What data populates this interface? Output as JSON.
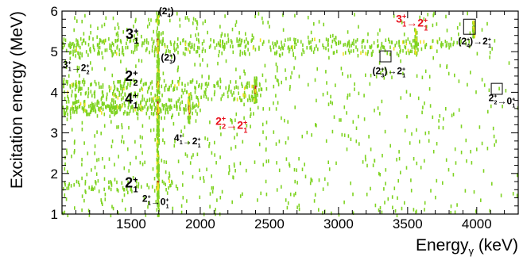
{
  "chart_data": {
    "type": "heatmap",
    "xlabel": "Energy",
    "xlabel_sub": "γ",
    "xlabel_unit": " (keV)",
    "ylabel": "Excitation energy (MeV)",
    "xlim": [
      1000,
      4300
    ],
    "ylim": [
      1,
      6
    ],
    "xticks": [
      1500,
      2000,
      2500,
      3000,
      3500,
      4000
    ],
    "yticks": [
      1,
      2,
      3,
      4,
      5,
      6
    ],
    "colors": {
      "low": "#7ed321",
      "mid": "#f0e020",
      "high": "#c0281c",
      "label_red": "#e8101c"
    },
    "bands": [
      {
        "y": 5.25,
        "x0": 1000,
        "x1": 3950,
        "density": 0.55
      },
      {
        "y": 5.05,
        "x0": 1000,
        "x1": 3600,
        "density": 0.35
      },
      {
        "y": 4.2,
        "x0": 1000,
        "x1": 2450,
        "density": 0.6
      },
      {
        "y": 3.95,
        "x0": 1000,
        "x1": 2450,
        "density": 0.45
      },
      {
        "y": 3.72,
        "x0": 1000,
        "x1": 2000,
        "density": 0.75
      },
      {
        "y": 3.6,
        "x0": 1000,
        "x1": 2000,
        "density": 0.7
      },
      {
        "y": 1.75,
        "x0": 1000,
        "x1": 1800,
        "density": 0.35
      }
    ],
    "vertical_lines": [
      {
        "x": 1690,
        "y0": 1.0,
        "y1": 6.0,
        "hot": [
          1.75,
          3.6,
          3.72,
          4.2,
          5.05,
          5.25
        ]
      },
      {
        "x": 1915,
        "y0": 3.3,
        "y1": 4.0,
        "hot": [
          3.6,
          3.72
        ]
      },
      {
        "x": 2395,
        "y0": 3.8,
        "y1": 4.4,
        "hot": [
          4.1
        ]
      },
      {
        "x": 3555,
        "y0": 5.0,
        "y1": 5.6,
        "hot": []
      },
      {
        "x": 3975,
        "y0": 5.4,
        "y1": 5.8,
        "hot": []
      }
    ],
    "boxes": [
      {
        "x0": 3300,
        "x1": 3380,
        "y0": 4.75,
        "y1": 5.02
      },
      {
        "x0": 3905,
        "x1": 3990,
        "y0": 5.43,
        "y1": 5.8
      },
      {
        "x0": 4105,
        "x1": 4185,
        "y0": 3.95,
        "y1": 4.22
      }
    ],
    "annotations": [
      {
        "id": "ann-3-1",
        "x": 1460,
        "y": 5.32,
        "base": "3",
        "sub": "1",
        "sup": "+",
        "size": 18,
        "red": false
      },
      {
        "id": "ann-2-2",
        "x": 1455,
        "y": 4.28,
        "base": "2",
        "sub": "2",
        "sup": "+",
        "size": 18,
        "red": false
      },
      {
        "id": "ann-4-1",
        "x": 1455,
        "y": 3.72,
        "base": "4",
        "sub": "1",
        "sup": "+",
        "size": 18,
        "red": false
      },
      {
        "id": "ann-2-1",
        "x": 1455,
        "y": 1.65,
        "base": "2",
        "sub": "1",
        "sup": "+",
        "size": 18,
        "red": false
      },
      {
        "id": "ann-2-4-paren",
        "x": 1700,
        "y": 5.92,
        "base": "(2",
        "sub": "4",
        "sup": "+",
        "tail": ")",
        "size": 12,
        "red": false
      },
      {
        "id": "ann-2-3-paren",
        "x": 1715,
        "y": 4.78,
        "base": "(2",
        "sub": "3",
        "sup": "+",
        "tail": ")",
        "size": 12,
        "red": false
      },
      {
        "id": "ann-31-22",
        "x": 1005,
        "y": 4.6,
        "base": "3",
        "sub": "1",
        "sup": "+",
        "arrow": "2",
        "asub": "2",
        "asup": "+",
        "size": 12,
        "red": false
      },
      {
        "id": "ann-41-21",
        "x": 1810,
        "y": 2.8,
        "base": "4",
        "sub": "1",
        "sup": "+",
        "arrow": "2",
        "asub": "1",
        "asup": "+",
        "size": 12,
        "red": false
      },
      {
        "id": "ann-21-01",
        "x": 1580,
        "y": 1.3,
        "base": "2",
        "sub": "1",
        "sup": "+",
        "arrow": "0",
        "asub": "1",
        "asup": "+",
        "size": 12,
        "red": false
      },
      {
        "id": "ann-22-21",
        "x": 2110,
        "y": 3.2,
        "base": "2",
        "sub": "2",
        "sup": "+",
        "arrow": "2",
        "asub": "1",
        "asup": "+",
        "size": 14,
        "red": true
      },
      {
        "id": "ann-31-21",
        "x": 3415,
        "y": 5.72,
        "base": "3",
        "sub": "1",
        "sup": "+",
        "arrow": "2",
        "asub": "1",
        "asup": "+",
        "size": 14,
        "red": true
      },
      {
        "id": "ann-23-21",
        "x": 3245,
        "y": 4.45,
        "base": "(2",
        "sub": "3",
        "sup": "+",
        "tail": ")",
        "arrow": "2",
        "asub": "1",
        "asup": "+",
        "size": 12,
        "red": false
      },
      {
        "id": "ann-24-21",
        "x": 3865,
        "y": 5.18,
        "base": "(2",
        "sub": "4",
        "sup": "+",
        "tail": ")",
        "arrow": "2",
        "asub": "1",
        "asup": "+",
        "size": 12,
        "red": false
      },
      {
        "id": "ann-22-01",
        "x": 4085,
        "y": 3.78,
        "base": "2",
        "sub": "2",
        "sup": "+",
        "arrow": "0",
        "asub": "1",
        "asup": "+",
        "size": 12,
        "red": false
      }
    ]
  }
}
